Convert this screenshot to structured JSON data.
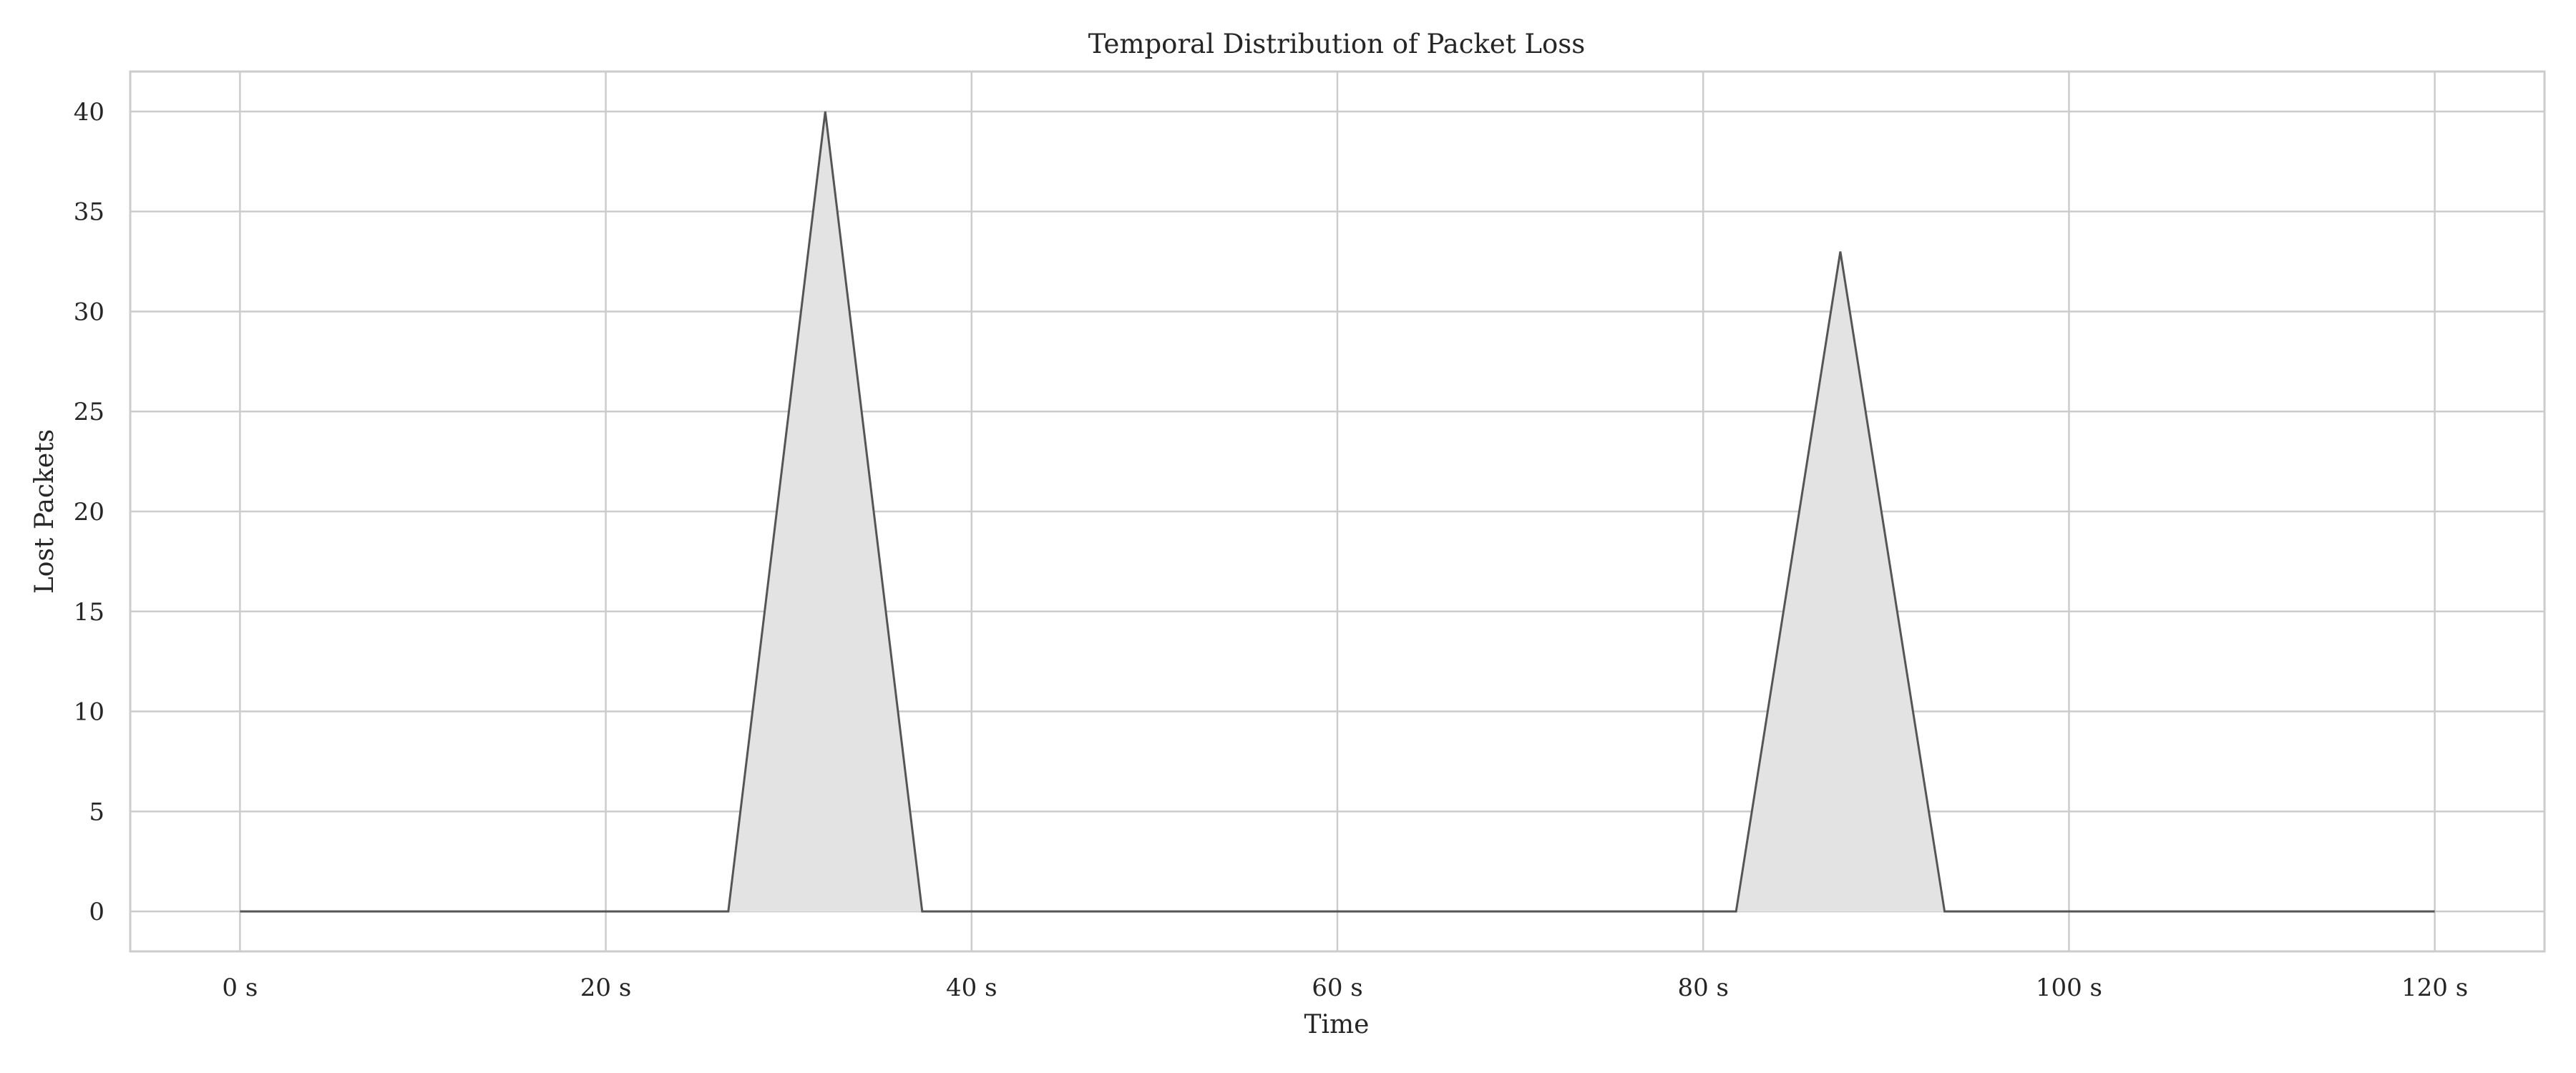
{
  "chart_data": {
    "type": "area",
    "title": "Temporal Distribution of Packet Loss",
    "xlabel": "Time",
    "ylabel": "Lost Packets",
    "x": [
      0,
      26.7,
      32,
      37.3,
      81.8,
      87.5,
      93.2,
      120
    ],
    "values": [
      0,
      0,
      40,
      0,
      0,
      33,
      0,
      0
    ],
    "xlim": [
      -6,
      126
    ],
    "ylim": [
      -2,
      42
    ],
    "xticks": [
      0,
      20,
      40,
      60,
      80,
      100,
      120
    ],
    "xtick_labels": [
      "0 s",
      "20 s",
      "40 s",
      "60 s",
      "80 s",
      "100 s",
      "120 s"
    ],
    "yticks": [
      0,
      5,
      10,
      15,
      20,
      25,
      30,
      35,
      40
    ],
    "ytick_labels": [
      "0",
      "5",
      "10",
      "15",
      "20",
      "25",
      "30",
      "35",
      "40"
    ],
    "grid": true,
    "legend": "none",
    "colors": {
      "line": "#555555",
      "fill": "#e3e3e3",
      "grid": "#cccccc",
      "frame": "#cccccc"
    }
  }
}
